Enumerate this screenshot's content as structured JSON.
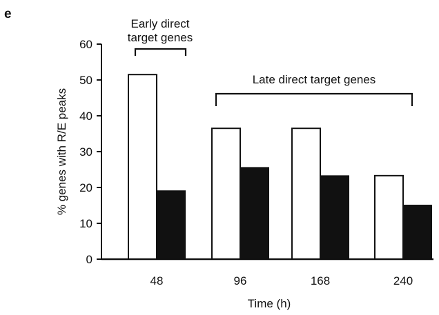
{
  "panel_label": "e",
  "chart_data": {
    "type": "bar",
    "categories": [
      "48",
      "96",
      "168",
      "240"
    ],
    "series": [
      {
        "values": [
          51.5,
          36.5,
          36.5,
          23.3
        ],
        "color": "#ffffff",
        "stroke": "#111111"
      },
      {
        "values": [
          19.0,
          25.5,
          23.2,
          15.0
        ],
        "color": "#111111",
        "stroke": "#111111"
      }
    ],
    "xlabel": "Time (h)",
    "ylabel": "% genes with R/E peaks",
    "ylim": [
      0,
      60
    ],
    "yticks": [
      0,
      10,
      20,
      30,
      40,
      50,
      60
    ],
    "grid": false,
    "annotations": [
      {
        "text_lines": [
          "Early direct",
          "target genes"
        ],
        "spans": [
          "48"
        ]
      },
      {
        "text_lines": [
          "Late direct target genes"
        ],
        "spans": [
          "96",
          "240"
        ]
      }
    ]
  }
}
